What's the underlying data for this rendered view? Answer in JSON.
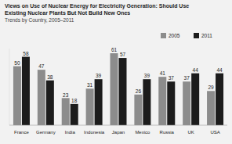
{
  "chart_data": {
    "type": "bar",
    "title": "Views on Use of Nuclear Energy for Electricity Generation: Should Use Existing Nuclear Plants But Not Build New Ones",
    "subtitle": "Trends by Country, 2005–2011",
    "categories": [
      "France",
      "Germany",
      "India",
      "Indonesia",
      "Japan",
      "Mexico",
      "Russia",
      "UK",
      "USA"
    ],
    "series": [
      {
        "name": "2005",
        "color": "#8c8c8c",
        "values": [
          50,
          47,
          23,
          31,
          61,
          26,
          41,
          37,
          29
        ]
      },
      {
        "name": "2011",
        "color": "#1c1c1c",
        "values": [
          58,
          38,
          18,
          39,
          57,
          39,
          37,
          44,
          44
        ]
      }
    ],
    "ylim": [
      0,
      65
    ],
    "legend": "top-right",
    "data_labels": true,
    "tick_labels": "x",
    "grid": false
  }
}
